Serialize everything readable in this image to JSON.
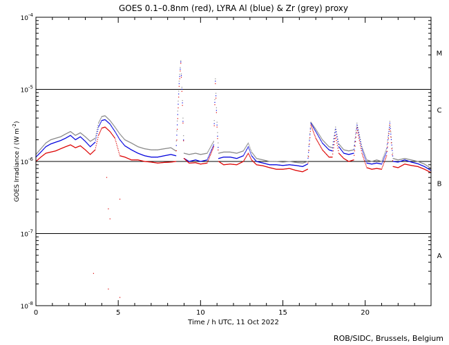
{
  "chart_data": {
    "type": "scatter",
    "title": "GOES 0.1–0.8nm (red), LYRA Al (blue) & Zr (grey) proxy",
    "xlabel": "Time / h UTC, 11 Oct 2022",
    "ylabel_main": "GOES Irradiance / (W m",
    "ylabel_sup": "-2",
    "ylabel_close": ")",
    "xlim": [
      0,
      24
    ],
    "ylim": [
      1e-08,
      0.0001
    ],
    "y_scale": "log",
    "x_ticks": [
      0,
      5,
      10,
      15,
      20
    ],
    "x_tick_labels": [
      "0",
      "5",
      "10",
      "15",
      "20"
    ],
    "y_ticks": [
      {
        "value": 1e-08,
        "base": "10",
        "exp": "-8"
      },
      {
        "value": 1e-07,
        "base": "10",
        "exp": "-7"
      },
      {
        "value": 1e-06,
        "base": "10",
        "exp": "-6"
      },
      {
        "value": 1e-05,
        "base": "10",
        "exp": "-5"
      },
      {
        "value": 0.0001,
        "base": "10",
        "exp": "-4"
      }
    ],
    "threshold_lines": [
      1e-07,
      1e-06,
      1e-05
    ],
    "flare_classes": [
      {
        "label": "M",
        "value": 3.2e-05
      },
      {
        "label": "C",
        "value": 5.2e-06
      },
      {
        "label": "B",
        "value": 5e-07
      },
      {
        "label": "A",
        "value": 5e-08
      }
    ],
    "series": [
      {
        "name": "red",
        "color": "#dd0000",
        "x": [
          0.0,
          0.3,
          0.6,
          0.9,
          1.2,
          1.5,
          1.8,
          2.1,
          2.4,
          2.7,
          3.0,
          3.3,
          3.6,
          3.8,
          4.0,
          4.2,
          4.5,
          4.8,
          5.1,
          5.4,
          5.8,
          6.2,
          6.6,
          7.0,
          7.4,
          7.8,
          8.2,
          8.5,
          8.7,
          8.8,
          8.9,
          9.0,
          9.3,
          9.7,
          10.0,
          10.4,
          10.8,
          10.9,
          11.0,
          11.1,
          11.4,
          11.8,
          12.2,
          12.6,
          12.9,
          13.1,
          13.4,
          13.8,
          14.2,
          14.6,
          15.0,
          15.4,
          15.8,
          16.2,
          16.5,
          16.7,
          17.0,
          17.4,
          17.8,
          18.0,
          18.2,
          18.4,
          18.7,
          19.0,
          19.3,
          19.5,
          19.8,
          20.1,
          20.4,
          20.7,
          21.0,
          21.3,
          21.5,
          21.7,
          22.0,
          22.4,
          22.8,
          23.2,
          23.6,
          24.0
        ],
        "y": [
          1e-06,
          1.15e-06,
          1.3e-06,
          1.35e-06,
          1.4e-06,
          1.5e-06,
          1.6e-06,
          1.7e-06,
          1.55e-06,
          1.65e-06,
          1.45e-06,
          1.25e-06,
          1.45e-06,
          2.3e-06,
          2.9e-06,
          3e-06,
          2.6e-06,
          2.1e-06,
          1.2e-06,
          1.15e-06,
          1.05e-06,
          1.05e-06,
          1e-06,
          9.8e-07,
          9.5e-07,
          9.7e-07,
          9.8e-07,
          1e-06,
          1.1e-05,
          2.3e-05,
          6e-06,
          1.1e-06,
          9.5e-07,
          9.6e-07,
          9.2e-07,
          9.5e-07,
          1.6e-06,
          1.2e-05,
          3e-06,
          1e-06,
          9e-07,
          9.2e-07,
          9e-07,
          1e-06,
          1.3e-06,
          1.05e-06,
          9e-07,
          8.7e-07,
          8.2e-07,
          7.8e-07,
          7.8e-07,
          8e-07,
          7.5e-07,
          7.2e-07,
          7.8e-07,
          3.2e-06,
          2.1e-06,
          1.45e-06,
          1.15e-06,
          1.15e-06,
          2.3e-06,
          1.3e-06,
          1.1e-06,
          1e-06,
          1.05e-06,
          2.9e-06,
          1.3e-06,
          8.2e-07,
          7.8e-07,
          8e-07,
          7.8e-07,
          1.2e-06,
          3.2e-06,
          8.5e-07,
          8.2e-07,
          9.2e-07,
          8.8e-07,
          8.5e-07,
          7.8e-07,
          7e-07
        ]
      },
      {
        "name": "blue",
        "color": "#0000dd",
        "x": [
          0.0,
          0.3,
          0.6,
          0.9,
          1.2,
          1.5,
          1.8,
          2.1,
          2.4,
          2.7,
          3.0,
          3.3,
          3.6,
          3.8,
          4.0,
          4.2,
          4.5,
          4.8,
          5.1,
          5.4,
          5.8,
          6.2,
          6.6,
          7.0,
          7.4,
          7.8,
          8.2,
          8.5,
          8.7,
          8.8,
          8.9,
          9.0,
          9.3,
          9.7,
          10.0,
          10.4,
          10.8,
          10.9,
          11.0,
          11.1,
          11.4,
          11.8,
          12.2,
          12.6,
          12.9,
          13.1,
          13.4,
          13.8,
          14.2,
          14.6,
          15.0,
          15.4,
          15.8,
          16.2,
          16.5,
          16.7,
          17.0,
          17.4,
          17.8,
          18.0,
          18.2,
          18.4,
          18.7,
          19.0,
          19.3,
          19.5,
          19.8,
          20.1,
          20.4,
          20.7,
          21.0,
          21.3,
          21.5,
          21.7,
          22.0,
          22.4,
          22.8,
          23.2,
          23.6,
          24.0
        ],
        "y": [
          1.15e-06,
          1.35e-06,
          1.6e-06,
          1.75e-06,
          1.85e-06,
          1.95e-06,
          2.1e-06,
          2.3e-06,
          2e-06,
          2.2e-06,
          1.9e-06,
          1.6e-06,
          1.85e-06,
          3e-06,
          3.7e-06,
          3.8e-06,
          3.3e-06,
          2.6e-06,
          2e-06,
          1.65e-06,
          1.45e-06,
          1.3e-06,
          1.2e-06,
          1.15e-06,
          1.15e-06,
          1.2e-06,
          1.25e-06,
          1.2e-06,
          1.2e-05,
          2.4e-05,
          6.5e-06,
          1.1e-06,
          1e-06,
          1.05e-06,
          1e-06,
          1.05e-06,
          1.7e-06,
          1.3e-05,
          3.2e-06,
          1.1e-06,
          1.15e-06,
          1.15e-06,
          1.1e-06,
          1.2e-06,
          1.6e-06,
          1.2e-06,
          1e-06,
          9.5e-07,
          9e-07,
          9e-07,
          8.8e-07,
          9e-07,
          8.8e-07,
          8.5e-07,
          9.2e-07,
          3.4e-06,
          2.6e-06,
          1.8e-06,
          1.45e-06,
          1.4e-06,
          2.8e-06,
          1.6e-06,
          1.3e-06,
          1.25e-06,
          1.3e-06,
          3.2e-06,
          1.5e-06,
          9.5e-07,
          9.2e-07,
          9.5e-07,
          9.2e-07,
          1.35e-06,
          3.4e-06,
          1e-06,
          9.8e-07,
          1.05e-06,
          9.8e-07,
          9.3e-07,
          8.5e-07,
          7.5e-07
        ]
      },
      {
        "name": "grey",
        "color": "#888888",
        "x": [
          0.0,
          0.3,
          0.6,
          0.9,
          1.2,
          1.5,
          1.8,
          2.1,
          2.4,
          2.7,
          3.0,
          3.3,
          3.6,
          3.8,
          4.0,
          4.2,
          4.5,
          4.8,
          5.1,
          5.4,
          5.8,
          6.2,
          6.6,
          7.0,
          7.4,
          7.8,
          8.2,
          8.5,
          8.7,
          8.8,
          8.9,
          9.0,
          9.3,
          9.7,
          10.0,
          10.4,
          10.8,
          10.9,
          11.0,
          11.1,
          11.4,
          11.8,
          12.2,
          12.6,
          12.9,
          13.1,
          13.4,
          13.8,
          14.2,
          14.6,
          15.0,
          15.4,
          15.8,
          16.2,
          16.5,
          16.7,
          17.0,
          17.4,
          17.8,
          18.0,
          18.2,
          18.4,
          18.7,
          19.0,
          19.3,
          19.5,
          19.8,
          20.1,
          20.4,
          20.7,
          21.0,
          21.3,
          21.5,
          21.7,
          22.0,
          22.4,
          22.8,
          23.2,
          23.6,
          24.0
        ],
        "y": [
          1.25e-06,
          1.5e-06,
          1.8e-06,
          2e-06,
          2.1e-06,
          2.2e-06,
          2.4e-06,
          2.6e-06,
          2.3e-06,
          2.5e-06,
          2.2e-06,
          1.9e-06,
          2.1e-06,
          3.4e-06,
          4.2e-06,
          4.3e-06,
          3.7e-06,
          3e-06,
          2.4e-06,
          2e-06,
          1.8e-06,
          1.6e-06,
          1.5e-06,
          1.45e-06,
          1.45e-06,
          1.5e-06,
          1.55e-06,
          1.4e-06,
          1.3e-05,
          2.5e-05,
          7e-06,
          1.3e-06,
          1.25e-06,
          1.3e-06,
          1.25e-06,
          1.3e-06,
          1.9e-06,
          1.4e-05,
          3.5e-06,
          1.3e-06,
          1.35e-06,
          1.35e-06,
          1.3e-06,
          1.4e-06,
          1.8e-06,
          1.35e-06,
          1.1e-06,
          1.05e-06,
          1e-06,
          1e-06,
          9.8e-07,
          1e-06,
          9.7e-07,
          9.5e-07,
          1e-06,
          3.5e-06,
          2.8e-06,
          2e-06,
          1.6e-06,
          1.55e-06,
          3e-06,
          1.75e-06,
          1.45e-06,
          1.4e-06,
          1.45e-06,
          3.4e-06,
          1.6e-06,
          1.05e-06,
          1e-06,
          1.05e-06,
          1e-06,
          1.5e-06,
          3.6e-06,
          1.1e-06,
          1.05e-06,
          1.1e-06,
          1.05e-06,
          1e-06,
          9.2e-07,
          8e-07
        ]
      },
      {
        "name": "red outliers",
        "color": "#dd0000",
        "x": [
          3.5,
          4.3,
          4.4,
          4.5,
          5.1,
          4.4,
          5.1
        ],
        "y": [
          2.8e-08,
          6e-07,
          2.2e-07,
          1.6e-07,
          3e-07,
          1.7e-08,
          1.3e-08
        ]
      }
    ]
  },
  "footer": {
    "credit": "ROB/SIDC, Brussels, Belgium"
  }
}
